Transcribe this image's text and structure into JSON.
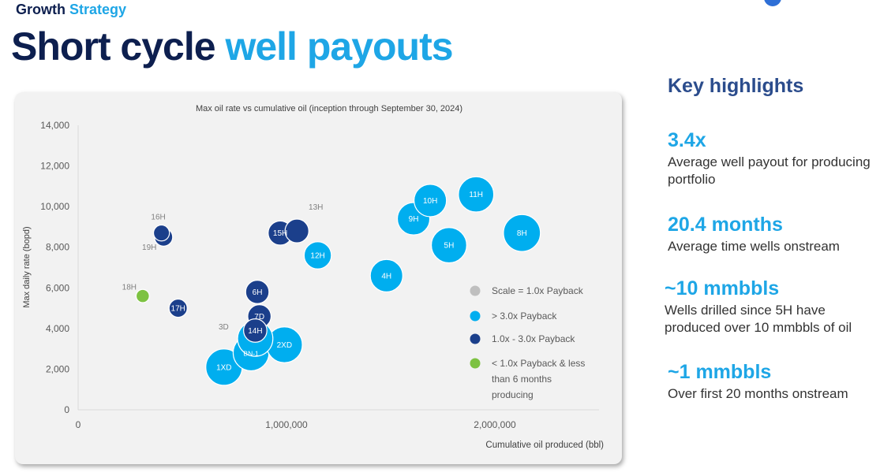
{
  "header": {
    "eyebrow_a": "Growth",
    "eyebrow_b": "Strategy",
    "title_a": "Short cycle",
    "title_b": "well payouts"
  },
  "highlights": {
    "heading": "Key highlights",
    "items": [
      {
        "value": "3.4x",
        "text": "Average well payout for producing portfolio"
      },
      {
        "value": "20.4 months",
        "text": "Average time wells onstream"
      },
      {
        "value": "~10 mmbbls",
        "text": "Wells drilled since 5H have produced over 10 mmbbls of oil"
      },
      {
        "value": "~1 mmbbls",
        "text": "Over first 20 months onstream"
      }
    ]
  },
  "colors": {
    "navy": "#0d1f4f",
    "accent": "#1ea6e6",
    "highlight_heading": "#2b4c8c",
    "light_blue": "#00aeef",
    "dark_blue": "#1b3f8b",
    "green": "#7dc242",
    "scale_grey": "#bfbfbf"
  },
  "chart_data": {
    "type": "scatter",
    "title": "Max oil rate vs cumulative oil (inception through September 30, 2024)",
    "xlabel": "Cumulative oil produced (bbl)",
    "ylabel": "Max daily rate (bopd)",
    "xlim": [
      0,
      2500000
    ],
    "ylim": [
      0,
      14000
    ],
    "x_ticks": [
      0,
      1000000,
      2000000
    ],
    "x_tick_labels": [
      "0",
      "1,000,000",
      "2,000,000"
    ],
    "y_ticks": [
      0,
      2000,
      4000,
      6000,
      8000,
      10000,
      12000,
      14000
    ],
    "y_tick_labels": [
      "0",
      "2,000",
      "4,000",
      "6,000",
      "8,000",
      "10,000",
      "12,000",
      "14,000"
    ],
    "grid": false,
    "legend": {
      "placement": "right",
      "items": [
        {
          "label": "Scale = 1.0x Payback",
          "color": "#bfbfbf"
        },
        {
          "label": "> 3.0x Payback",
          "color": "#00aeef"
        },
        {
          "label": "1.0x - 3.0x Payback",
          "color": "#1b3f8b"
        },
        {
          "label": "< 1.0x Payback & less than 6 months producing",
          "color": "#7dc242"
        }
      ]
    },
    "series": [
      {
        "name": "> 3.0x Payback",
        "color": "#00aeef",
        "points": [
          {
            "label": "1XD",
            "x": 700000,
            "y": 2100,
            "size": 3.4
          },
          {
            "label": "BN-1",
            "x": 830000,
            "y": 2800,
            "size": 3.3
          },
          {
            "label": "3D",
            "x": 850000,
            "y": 3500,
            "size": 3.2
          },
          {
            "label": "2XD",
            "x": 990000,
            "y": 3200,
            "size": 3.3
          },
          {
            "label": "12H",
            "x": 1150000,
            "y": 7600,
            "size": 1.9
          },
          {
            "label": "4H",
            "x": 1480000,
            "y": 6600,
            "size": 2.7
          },
          {
            "label": "9H",
            "x": 1610000,
            "y": 9400,
            "size": 2.7
          },
          {
            "label": "10H",
            "x": 1690000,
            "y": 10300,
            "size": 2.7
          },
          {
            "label": "5H",
            "x": 1780000,
            "y": 8100,
            "size": 3.2
          },
          {
            "label": "11H",
            "x": 1910000,
            "y": 10600,
            "size": 3.2
          },
          {
            "label": "8H",
            "x": 2130000,
            "y": 8700,
            "size": 3.5
          }
        ]
      },
      {
        "name": "1.0x - 3.0x Payback",
        "color": "#1b3f8b",
        "points": [
          {
            "label": "16H",
            "x": 400000,
            "y": 8700,
            "size": 0.65
          },
          {
            "label": "19H",
            "x": 410000,
            "y": 8500,
            "size": 0.85
          },
          {
            "label": "17H",
            "x": 480000,
            "y": 5000,
            "size": 0.85
          },
          {
            "label": "6H",
            "x": 860000,
            "y": 5800,
            "size": 1.4
          },
          {
            "label": "7D",
            "x": 870000,
            "y": 4600,
            "size": 1.4
          },
          {
            "label": "14H",
            "x": 850000,
            "y": 3900,
            "size": 1.4
          },
          {
            "label": "13H",
            "x": 1050000,
            "y": 8800,
            "size": 1.45
          },
          {
            "label": "15H",
            "x": 970000,
            "y": 8700,
            "size": 1.5
          }
        ]
      },
      {
        "name": "< 1.0x Payback & less than 6 months producing",
        "color": "#7dc242",
        "points": [
          {
            "label": "18H",
            "x": 310000,
            "y": 5600,
            "size": 0.45
          }
        ]
      }
    ]
  }
}
